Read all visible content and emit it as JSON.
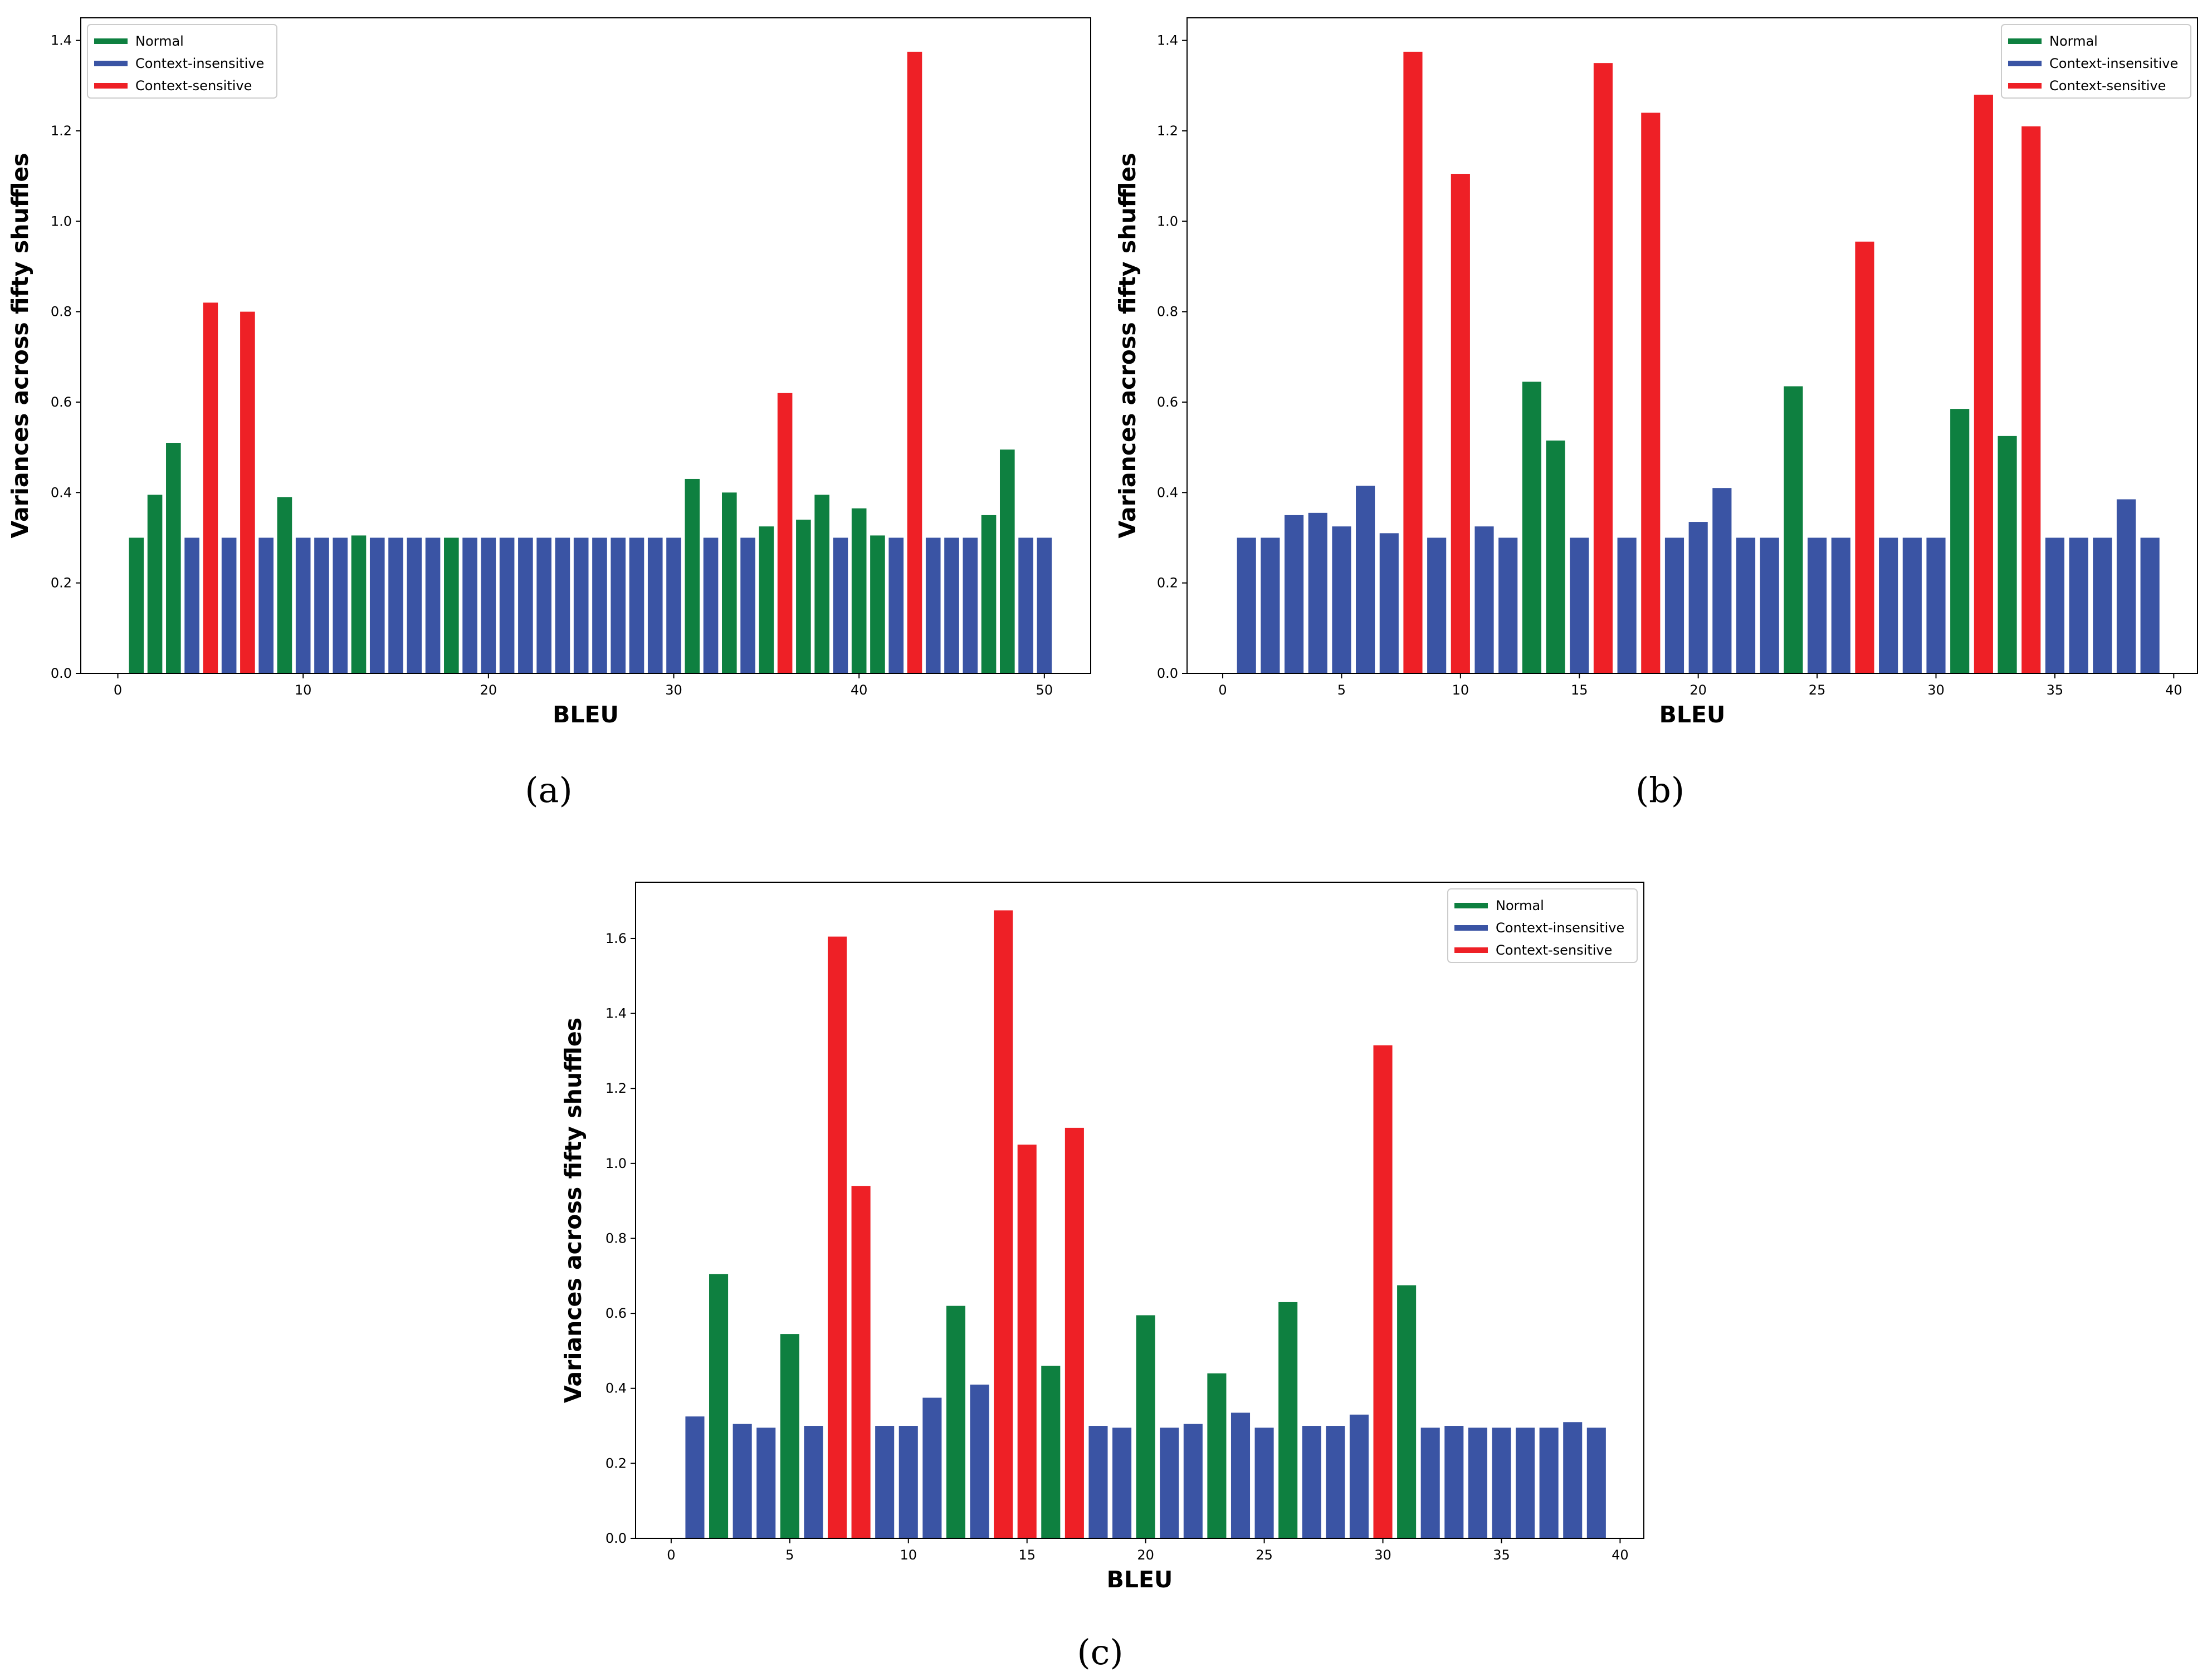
{
  "colors": {
    "normal": "#0e8040",
    "context_insensitive": "#3a54a4",
    "context_sensitive": "#ee2026"
  },
  "chart_data": [
    {
      "type": "bar",
      "caption": "(a)",
      "xlabel": "BLEU",
      "ylabel": "Variances across fifty shuffles",
      "xlim": [
        -2,
        52.5
      ],
      "ylim": [
        0,
        1.45
      ],
      "xticks": [
        0,
        10,
        20,
        30,
        40,
        50
      ],
      "yticks": [
        0.0,
        0.2,
        0.4,
        0.6,
        0.8,
        1.0,
        1.2,
        1.4
      ],
      "legend_position": "top-left",
      "legend": [
        "Normal",
        "Context-insensitive",
        "Context-sensitive"
      ],
      "x": [
        1,
        2,
        3,
        4,
        5,
        6,
        7,
        8,
        9,
        10,
        11,
        12,
        13,
        14,
        15,
        16,
        17,
        18,
        19,
        20,
        21,
        22,
        23,
        24,
        25,
        26,
        27,
        28,
        29,
        30,
        31,
        32,
        33,
        34,
        35,
        36,
        37,
        38,
        39,
        40,
        41,
        42,
        43,
        44,
        45,
        46,
        47,
        48,
        49,
        50
      ],
      "values": [
        0.3,
        0.395,
        0.51,
        0.3,
        0.82,
        0.3,
        0.8,
        0.3,
        0.39,
        0.3,
        0.3,
        0.3,
        0.305,
        0.3,
        0.3,
        0.3,
        0.3,
        0.3,
        0.3,
        0.3,
        0.3,
        0.3,
        0.3,
        0.3,
        0.3,
        0.3,
        0.3,
        0.3,
        0.3,
        0.3,
        0.43,
        0.3,
        0.4,
        0.3,
        0.325,
        0.62,
        0.34,
        0.395,
        0.3,
        0.365,
        0.305,
        0.3,
        1.375,
        0.3,
        0.3,
        0.3,
        0.35,
        0.495,
        0.3,
        0.3
      ],
      "categories": [
        "N",
        "N",
        "N",
        "I",
        "S",
        "I",
        "S",
        "I",
        "N",
        "I",
        "I",
        "I",
        "N",
        "I",
        "I",
        "I",
        "I",
        "N",
        "I",
        "I",
        "I",
        "I",
        "I",
        "I",
        "I",
        "I",
        "I",
        "I",
        "I",
        "I",
        "N",
        "I",
        "N",
        "I",
        "N",
        "S",
        "N",
        "N",
        "I",
        "N",
        "N",
        "I",
        "S",
        "I",
        "I",
        "I",
        "N",
        "N",
        "I",
        "I"
      ]
    },
    {
      "type": "bar",
      "caption": "(b)",
      "xlabel": "BLEU",
      "ylabel": "Variances across fifty shuffles",
      "xlim": [
        -1.5,
        41.0
      ],
      "ylim": [
        0,
        1.45
      ],
      "xticks": [
        0,
        5,
        10,
        15,
        20,
        25,
        30,
        35,
        40
      ],
      "yticks": [
        0.0,
        0.2,
        0.4,
        0.6,
        0.8,
        1.0,
        1.2,
        1.4
      ],
      "legend_position": "top-right",
      "legend": [
        "Normal",
        "Context-insensitive",
        "Context-sensitive"
      ],
      "x": [
        1,
        2,
        3,
        4,
        5,
        6,
        7,
        8,
        9,
        10,
        11,
        12,
        13,
        14,
        15,
        16,
        17,
        18,
        19,
        20,
        21,
        22,
        23,
        24,
        25,
        26,
        27,
        28,
        29,
        30,
        31,
        32,
        33,
        34,
        35,
        36,
        37,
        38,
        39
      ],
      "values": [
        0.3,
        0.3,
        0.35,
        0.355,
        0.325,
        0.415,
        0.31,
        1.375,
        0.3,
        1.105,
        0.325,
        0.3,
        0.645,
        0.515,
        0.3,
        1.35,
        0.3,
        1.24,
        0.3,
        0.335,
        0.41,
        0.3,
        0.3,
        0.635,
        0.3,
        0.3,
        0.955,
        0.3,
        0.3,
        0.3,
        0.585,
        1.28,
        0.525,
        1.21,
        0.3,
        0.3,
        0.3,
        0.385,
        0.3
      ],
      "categories": [
        "I",
        "I",
        "I",
        "I",
        "I",
        "I",
        "I",
        "S",
        "I",
        "S",
        "I",
        "I",
        "N",
        "N",
        "I",
        "S",
        "I",
        "S",
        "I",
        "I",
        "I",
        "I",
        "I",
        "N",
        "I",
        "I",
        "S",
        "I",
        "I",
        "I",
        "N",
        "S",
        "N",
        "S",
        "I",
        "I",
        "I",
        "I",
        "I"
      ]
    },
    {
      "type": "bar",
      "caption": "(c)",
      "xlabel": "BLEU",
      "ylabel": "Variances across fifty shuffles",
      "xlim": [
        -1.5,
        41.0
      ],
      "ylim": [
        0,
        1.75
      ],
      "xticks": [
        0,
        5,
        10,
        15,
        20,
        25,
        30,
        35,
        40
      ],
      "yticks": [
        0.0,
        0.2,
        0.4,
        0.6,
        0.8,
        1.0,
        1.2,
        1.4,
        1.6
      ],
      "legend_position": "top-right",
      "legend": [
        "Normal",
        "Context-insensitive",
        "Context-sensitive"
      ],
      "x": [
        1,
        2,
        3,
        4,
        5,
        6,
        7,
        8,
        9,
        10,
        11,
        12,
        13,
        14,
        15,
        16,
        17,
        18,
        19,
        20,
        21,
        22,
        23,
        24,
        25,
        26,
        27,
        28,
        29,
        30,
        31,
        32,
        33,
        34,
        35,
        36,
        37,
        38,
        39
      ],
      "values": [
        0.325,
        0.705,
        0.305,
        0.295,
        0.545,
        0.3,
        1.605,
        0.94,
        0.3,
        0.3,
        0.375,
        0.62,
        0.41,
        1.675,
        1.05,
        0.46,
        1.095,
        0.3,
        0.295,
        0.595,
        0.295,
        0.305,
        0.44,
        0.335,
        0.295,
        0.63,
        0.3,
        0.3,
        0.33,
        1.315,
        0.675,
        0.295,
        0.3,
        0.295,
        0.295,
        0.295,
        0.295,
        0.31,
        0.295
      ],
      "categories": [
        "I",
        "N",
        "I",
        "I",
        "N",
        "I",
        "S",
        "S",
        "I",
        "I",
        "I",
        "N",
        "I",
        "S",
        "S",
        "N",
        "S",
        "I",
        "I",
        "N",
        "I",
        "I",
        "N",
        "I",
        "I",
        "N",
        "I",
        "I",
        "I",
        "S",
        "N",
        "I",
        "I",
        "I",
        "I",
        "I",
        "I",
        "I",
        "I"
      ]
    }
  ]
}
